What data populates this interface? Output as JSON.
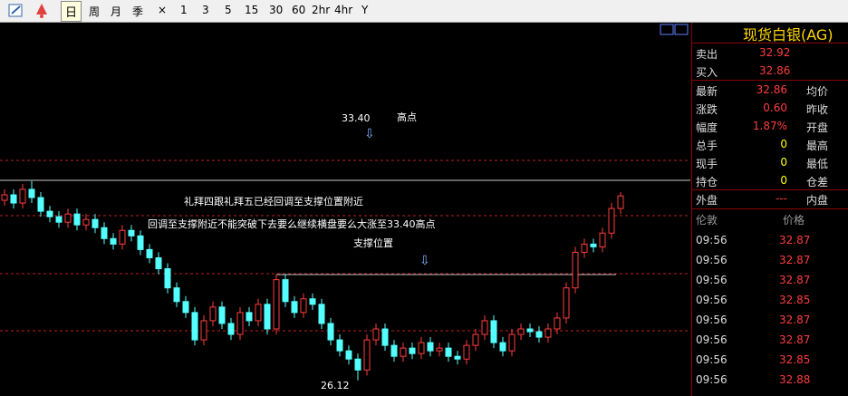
{
  "toolbar": {
    "periods": [
      "日",
      "周",
      "月",
      "季",
      "×",
      "1",
      "3",
      "5",
      "15",
      "30",
      "60",
      "2hr",
      "4hr",
      "Y"
    ]
  },
  "chart_data": {
    "type": "candlestick",
    "ylim": [
      25.55,
      39.19
    ],
    "open": [
      32.7,
      32.9,
      32.6,
      33.1,
      32.8,
      32.3,
      32.1,
      31.9,
      32.2,
      31.8,
      32.0,
      31.7,
      31.3,
      31.1,
      31.6,
      31.4,
      30.9,
      30.6,
      30.2,
      29.5,
      29.0,
      28.6,
      27.6,
      28.3,
      28.8,
      28.2,
      27.8,
      28.6,
      28.3,
      28.9,
      28.0,
      29.8,
      29.0,
      28.6,
      29.1,
      28.9,
      28.2,
      27.6,
      27.2,
      26.9,
      26.5,
      27.6,
      28.0,
      27.4,
      27.0,
      27.3,
      27.1,
      27.5,
      27.2,
      27.3,
      27.0,
      26.9,
      27.4,
      27.8,
      28.3,
      27.5,
      27.2,
      27.8,
      28.0,
      27.9,
      27.7,
      28.0,
      28.4,
      29.5,
      30.8,
      31.1,
      31.0,
      31.5,
      32.4
    ],
    "high": [
      33.1,
      33.1,
      33.3,
      33.4,
      33.0,
      32.5,
      32.3,
      32.4,
      32.4,
      32.2,
      32.2,
      31.9,
      31.5,
      31.8,
      31.8,
      31.6,
      31.1,
      30.8,
      30.4,
      29.7,
      29.2,
      28.8,
      28.5,
      29.0,
      29.0,
      28.4,
      28.8,
      28.8,
      29.1,
      29.1,
      30.0,
      30.0,
      29.2,
      29.3,
      29.3,
      29.1,
      28.4,
      27.8,
      27.4,
      27.1,
      27.8,
      28.2,
      28.2,
      27.6,
      27.5,
      27.5,
      27.7,
      27.7,
      27.5,
      27.5,
      27.2,
      27.6,
      28.0,
      28.5,
      28.5,
      27.7,
      28.0,
      28.2,
      28.2,
      28.1,
      28.2,
      28.6,
      29.7,
      31.0,
      31.3,
      31.3,
      31.7,
      32.6,
      33.0
    ],
    "low": [
      32.5,
      32.4,
      32.4,
      32.6,
      32.1,
      31.9,
      31.7,
      31.7,
      31.6,
      31.6,
      31.5,
      31.1,
      30.9,
      30.9,
      31.2,
      30.7,
      30.4,
      30.0,
      29.3,
      28.8,
      28.4,
      27.4,
      27.4,
      28.1,
      28.0,
      27.6,
      27.6,
      28.1,
      28.1,
      27.8,
      27.8,
      28.8,
      28.4,
      28.4,
      28.7,
      28.0,
      27.4,
      27.0,
      26.7,
      26.12,
      26.3,
      27.4,
      27.2,
      26.8,
      26.8,
      26.9,
      26.9,
      27.0,
      27.0,
      26.8,
      26.7,
      26.7,
      27.2,
      27.6,
      27.3,
      27.0,
      27.0,
      27.6,
      27.7,
      27.5,
      27.5,
      27.8,
      28.2,
      29.3,
      30.6,
      30.8,
      30.8,
      31.3,
      32.2
    ],
    "close": [
      32.9,
      32.6,
      33.1,
      32.8,
      32.3,
      32.1,
      31.9,
      32.2,
      31.8,
      32.0,
      31.7,
      31.3,
      31.1,
      31.6,
      31.4,
      30.9,
      30.6,
      30.2,
      29.5,
      29.0,
      28.6,
      27.6,
      28.3,
      28.8,
      28.2,
      27.8,
      28.6,
      28.3,
      28.9,
      28.0,
      29.8,
      29.0,
      28.6,
      29.1,
      28.9,
      28.2,
      27.6,
      27.2,
      26.9,
      26.5,
      27.6,
      28.0,
      27.4,
      27.0,
      27.3,
      27.1,
      27.5,
      27.2,
      27.3,
      27.0,
      26.9,
      27.4,
      27.8,
      28.3,
      27.5,
      27.2,
      27.8,
      28.0,
      27.9,
      27.7,
      28.0,
      28.4,
      29.5,
      30.8,
      31.1,
      31.0,
      31.5,
      32.4,
      32.86
    ],
    "up_color": "#ff3c3c",
    "down_color": "#54ffff",
    "annotations": [
      "33.40",
      "高点",
      "礼拜四跟礼拜五已经回调至支撑位置附近",
      "回调至支撑附近不能突破下去要么继续横盘要么大涨至33.40高点",
      "支撑位置",
      "26.12"
    ]
  },
  "quote": {
    "title": "现货白银(AG)",
    "bidask": [
      [
        "卖出",
        "32.92"
      ],
      [
        "买入",
        "32.86"
      ]
    ],
    "rows": [
      [
        "最新",
        "32.86",
        "均价"
      ],
      [
        "涨跌",
        "0.60",
        "昨收"
      ],
      [
        "幅度",
        "1.87%",
        "开盘"
      ],
      [
        "总手",
        "0",
        "最高"
      ],
      [
        "现手",
        "0",
        "最低"
      ],
      [
        "持仓",
        "0",
        "仓差"
      ],
      [
        "外盘",
        "---",
        "内盘"
      ]
    ],
    "ticks_header": [
      "伦敦",
      "价格"
    ],
    "ticks": [
      [
        "09:56",
        "32.87"
      ],
      [
        "09:56",
        "32.87"
      ],
      [
        "09:56",
        "32.87"
      ],
      [
        "09:56",
        "32.85"
      ],
      [
        "09:56",
        "32.87"
      ],
      [
        "09:56",
        "32.87"
      ],
      [
        "09:56",
        "32.85"
      ],
      [
        "09:56",
        "32.88"
      ]
    ]
  }
}
